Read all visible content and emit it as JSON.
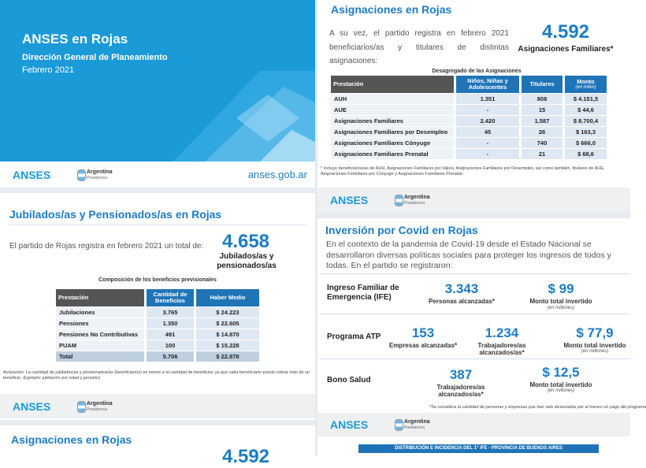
{
  "cover": {
    "title": "ANSES en Rojas",
    "subtitle": "Dirección General de Planeamiento",
    "date": "Febrero 2021",
    "url": "anses.gob.ar"
  },
  "footer": {
    "logo": "ANSES",
    "gov": "Argentina",
    "gov_sub": "Presidencia"
  },
  "jubilados": {
    "title": "Jubilados/as y Pensionados/as en Rojas",
    "intro": "El partido de Rojas registra en febrero 2021 un total de:",
    "total": "4.658",
    "total_label": "Jubilados/as y pensionados/as",
    "table_title": "Composición de los beneficios previsionales",
    "headers": [
      "Prestación",
      "Cantidad de Beneficios",
      "Haber Medio"
    ],
    "rows": [
      [
        "Jubilaciones",
        "3.765",
        "$ 24.223"
      ],
      [
        "Pensiones",
        "1.350",
        "$ 22.605"
      ],
      [
        "Pensiones No Contributivas",
        "491",
        "$ 14.870"
      ],
      [
        "PUAM",
        "100",
        "$ 15.228"
      ],
      [
        "Total",
        "5.706",
        "$ 22.878"
      ]
    ],
    "note": "Aclaración: La cantidad de jubilados/as y pensionados/as (beneficiarios) es menor a la cantidad de beneficios ya que cada beneficiario puede cobrar más de un beneficio. (Ejemplo: jubilación por edad y pensión)"
  },
  "next_page": {
    "title": "Asignaciones en Rojas",
    "total": "4.592"
  },
  "asignaciones": {
    "title": "Asignaciones en Rojas",
    "intro": "A su vez, el partido registra en febrero 2021 beneficiarios/as y titulares de distintas asignaciones:",
    "total": "4.592",
    "total_label": "Asignaciones Familiares*",
    "table_title": "Desagregado de las Asignaciones",
    "headers": [
      "Prestación",
      "Niños, Niñas y Adolescentes",
      "Titulares",
      "Monto"
    ],
    "monto_unit": "(en miles)",
    "rows": [
      [
        "AUH",
        "1.351",
        "808",
        "$ 4.151,5"
      ],
      [
        "AUE",
        "-",
        "15",
        "$ 44,6"
      ],
      [
        "Asignaciones Familiares",
        "2.420",
        "1.587",
        "$ 8.700,4"
      ],
      [
        "Asignaciones Familiares por Desempleo",
        "45",
        "26",
        "$ 163,3"
      ],
      [
        "Asignaciones Familiares Cónyuge",
        "-",
        "740",
        "$ 666,0"
      ],
      [
        "Asignaciones Familiares Prenatal",
        "-",
        "21",
        "$ 68,6"
      ]
    ],
    "note": "* Incluye beneficiarios/as de AUH, Asignaciones Familiares por Hijo/a, Asignaciones Familiares por Desempleo, así como también, titulares de AUE, Asignaciones Familiares por Cónyuge y Asignaciones Familiares Prenatal."
  },
  "covid": {
    "title": "Inversión por Covid en Rojas",
    "intro": "En el contexto de la pandemia de Covid-19 desde el Estado Nacional se desarrollaron diversas políticas sociales para proteger los ingresos de todos y todas. En el partido se registraron:",
    "ife": {
      "label": "Ingreso Familiar de Emergencia (IFE)",
      "personas": "3.343",
      "personas_label": "Personas alcanzadas*",
      "monto": "$ 99",
      "monto_label": "Monto total invertido",
      "monto_unit": "(en millones)"
    },
    "atp": {
      "label": "Programa ATP",
      "empresas": "153",
      "empresas_label": "Empresas alcanzadas*",
      "trabajadores": "1.234",
      "trabajadores_label": "Trabajadores/as alcanzados/as*",
      "monto": "$ 77,9",
      "monto_label": "Monto total invertido",
      "monto_unit": "(en millones)"
    },
    "bono": {
      "label": "Bono Salud",
      "trabajadores": "387",
      "trabajadores_label": "Trabajadores/as alcanzados/as*",
      "monto": "$ 12,5",
      "monto_label": "Monto total invertido",
      "monto_unit": "(en millones)"
    },
    "note": "*Se considera la cantidad de personas y empresas que han sido alcanzadas por al menos un pago del programa"
  },
  "ife_table_title": "DISTRIBUCIÓN E INCIDENCIA DEL 1° IFE - PROVINCIA DE BUENOS AIRES"
}
